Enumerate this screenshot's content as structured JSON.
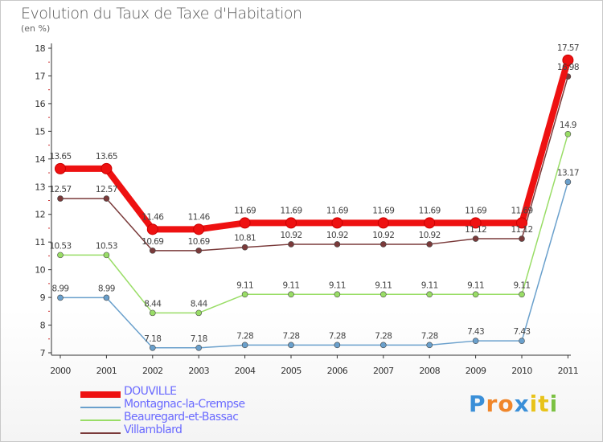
{
  "title": "Evolution du Taux de Taxe d'Habitation",
  "subtitle": "(en %)",
  "logo": {
    "letters": [
      "P",
      "r",
      "o",
      "x",
      "i",
      "t",
      "i"
    ],
    "colors": [
      "#3a8fd8",
      "#f0862a",
      "#f0862a",
      "#3a8fd8",
      "#e8c31a",
      "#e8c31a",
      "#7bc142"
    ]
  },
  "chart_data": {
    "type": "line",
    "title": "Evolution du Taux de Taxe d'Habitation",
    "ylabel": "(en %)",
    "ylim": [
      7,
      18
    ],
    "yticks": [
      "7",
      "8",
      "9",
      "10",
      "11",
      "12",
      "13",
      "14",
      "15",
      "16",
      "17",
      "18"
    ],
    "x": [
      "2000",
      "2001",
      "2002",
      "2003",
      "2004",
      "2005",
      "2006",
      "2007",
      "2008",
      "2009",
      "2010",
      "2011"
    ],
    "legend_position": "bottom-left",
    "series": [
      {
        "name": "DOUVILLE",
        "color": "#ee1111",
        "values": [
          13.65,
          13.65,
          11.46,
          11.46,
          11.69,
          11.69,
          11.69,
          11.69,
          11.69,
          11.69,
          11.69,
          17.57
        ],
        "labels": [
          "13.65",
          "13.65",
          "11.46",
          "11.46",
          "11.69",
          "11.69",
          "11.69",
          "11.69",
          "11.69",
          "11.69",
          "11.69",
          "17.57"
        ]
      },
      {
        "name": "Montagnac-la-Crempse",
        "color": "#6aa0cc",
        "values": [
          8.99,
          8.99,
          7.18,
          7.18,
          7.28,
          7.28,
          7.28,
          7.28,
          7.28,
          7.43,
          7.43,
          13.17
        ],
        "labels": [
          "8.99",
          "8.99",
          "7.18",
          "7.18",
          "7.28",
          "7.28",
          "7.28",
          "7.28",
          "7.28",
          "7.43",
          "7.43",
          "13.17"
        ]
      },
      {
        "name": "Beauregard-et-Bassac",
        "color": "#99dd66",
        "values": [
          10.53,
          10.53,
          8.44,
          8.44,
          9.11,
          9.11,
          9.11,
          9.11,
          9.11,
          9.11,
          9.11,
          14.9
        ],
        "labels": [
          "10.53",
          "10.53",
          "8.44",
          "8.44",
          "9.11",
          "9.11",
          "9.11",
          "9.11",
          "9.11",
          "9.11",
          "9.11",
          "14.9"
        ]
      },
      {
        "name": "Villamblard",
        "color": "#7a3a3a",
        "values": [
          12.57,
          12.57,
          10.69,
          10.69,
          10.81,
          10.92,
          10.92,
          10.92,
          10.92,
          11.12,
          11.12,
          16.98
        ],
        "labels": [
          "12.57",
          "12.57",
          "10.69",
          "10.69",
          "10.81",
          "10.92",
          "10.92",
          "10.92",
          "10.92",
          "11.12",
          "11.12",
          "16.98"
        ]
      }
    ]
  }
}
